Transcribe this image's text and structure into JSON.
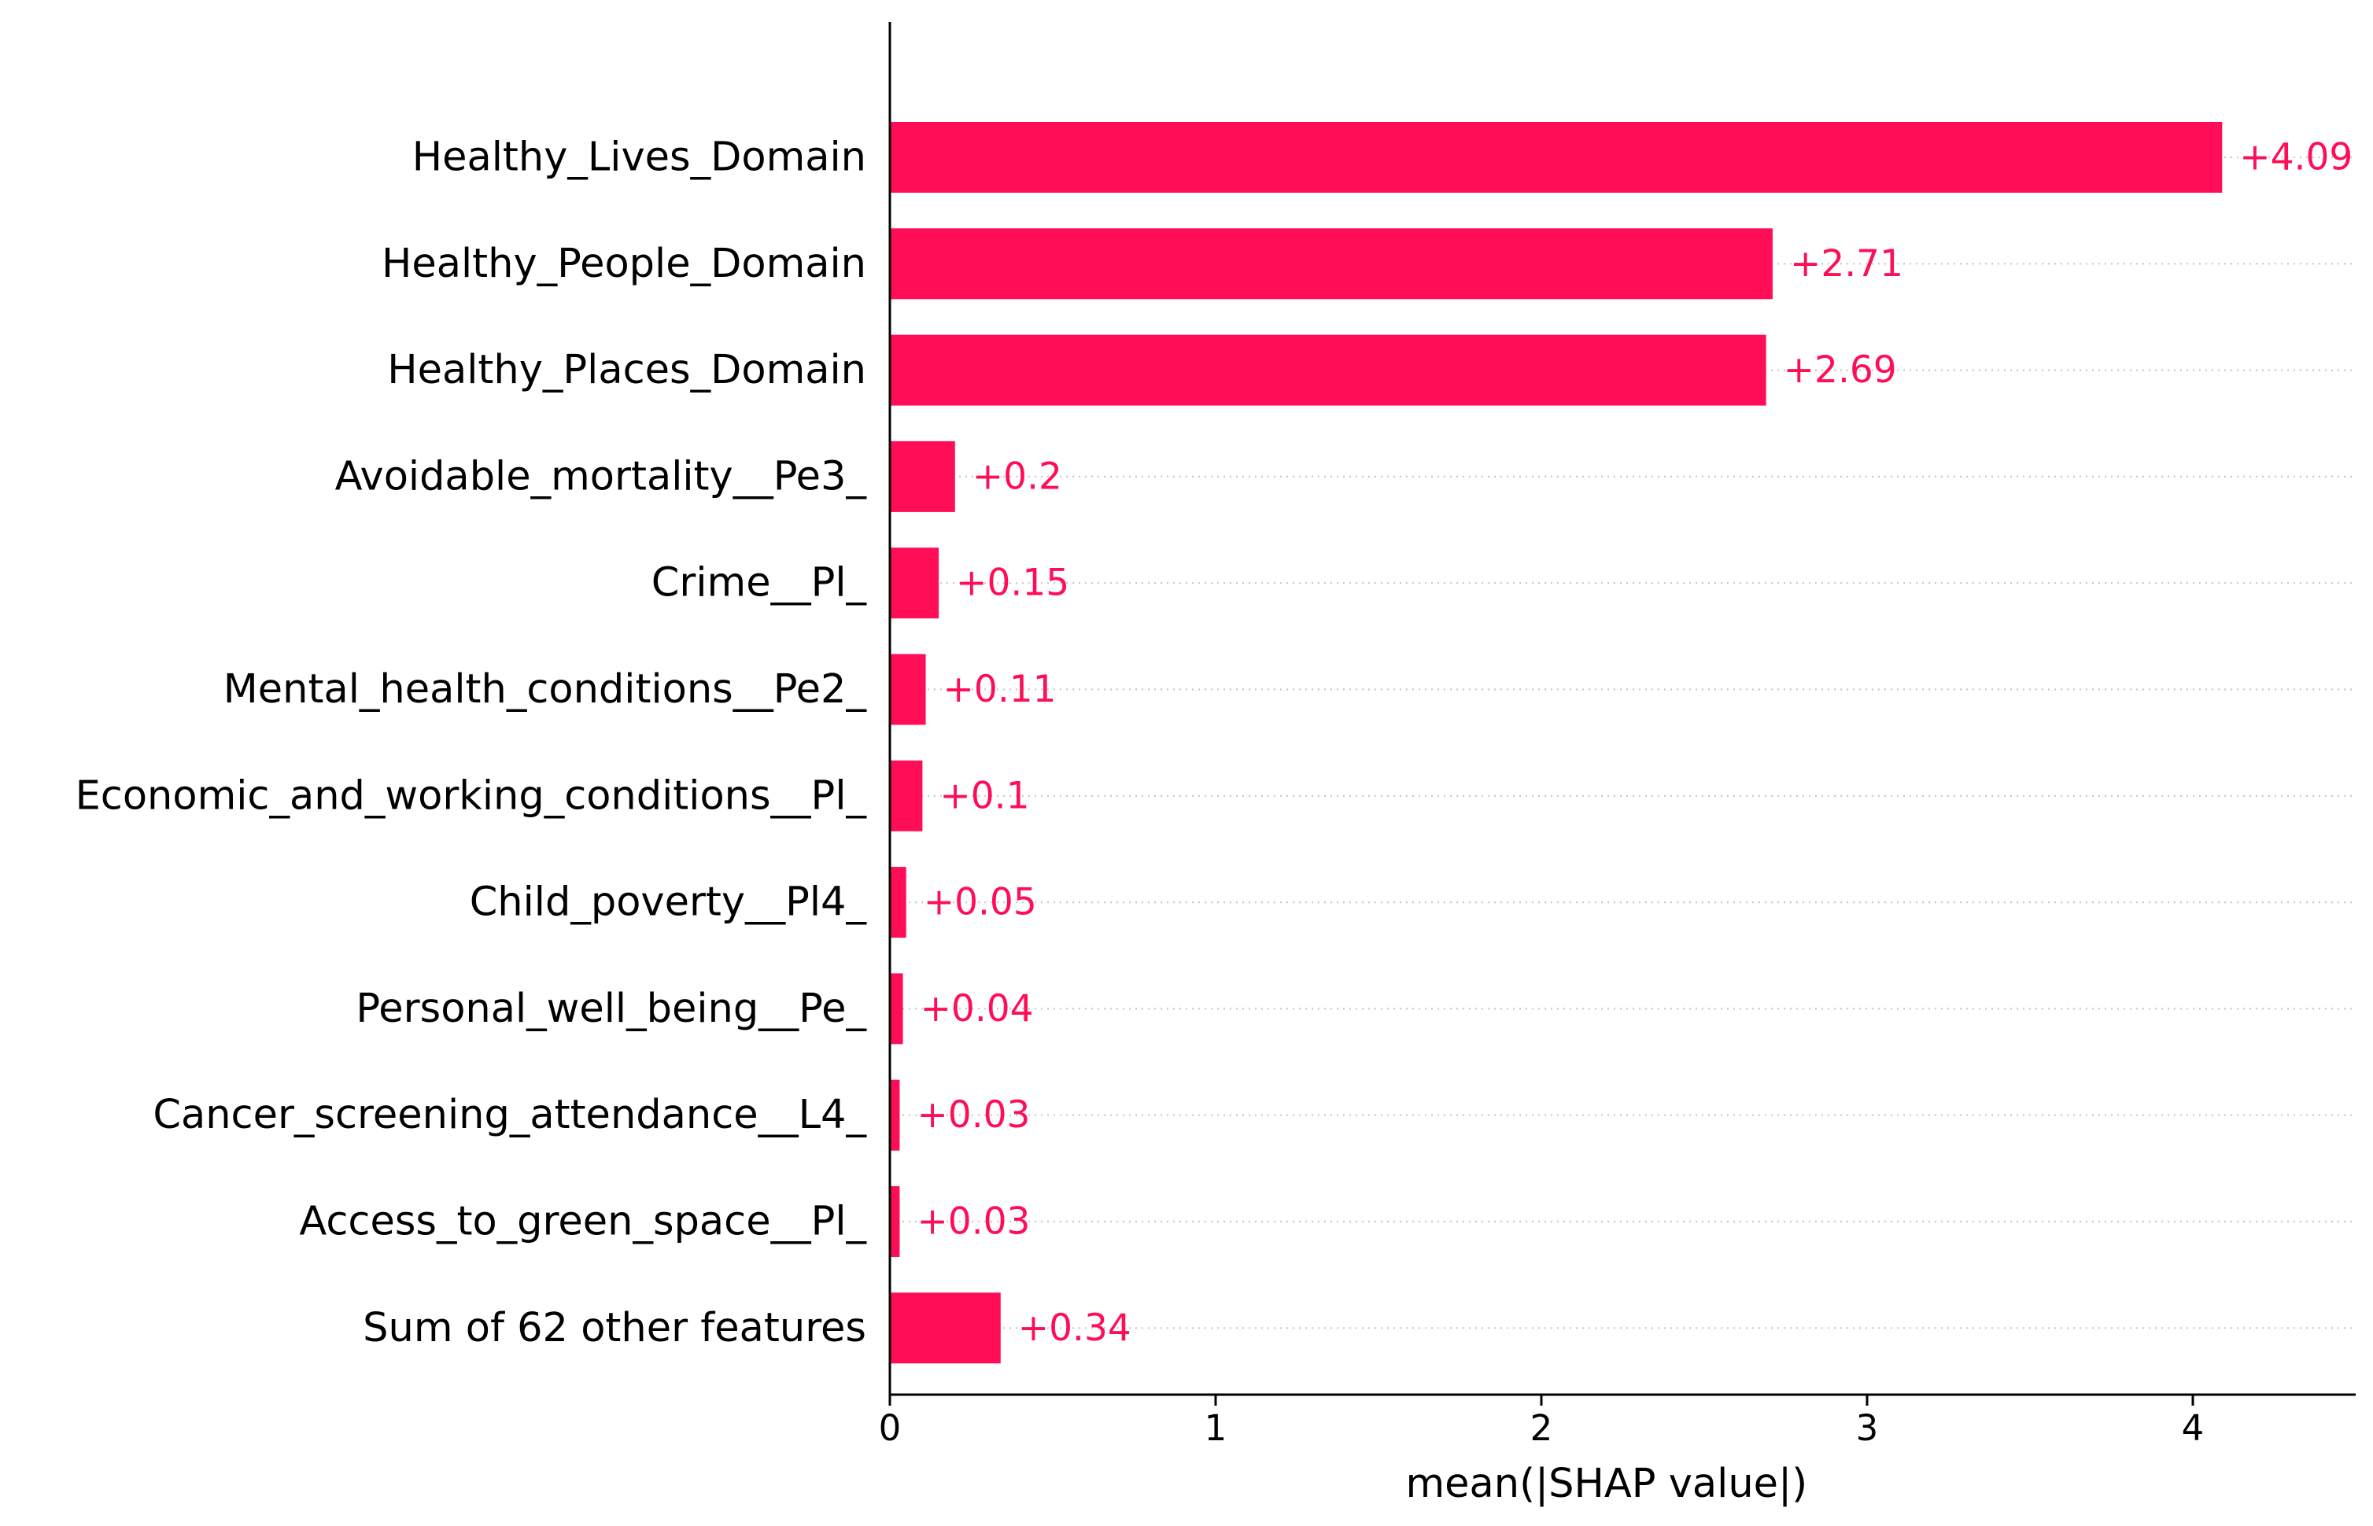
{
  "chart_data": {
    "type": "bar",
    "orientation": "horizontal",
    "categories": [
      "Healthy_Lives_Domain",
      "Healthy_People_Domain",
      "Healthy_Places_Domain",
      "Avoidable_mortality__Pe3_",
      "Crime__Pl_",
      "Mental_health_conditions__Pe2_",
      "Economic_and_working_conditions__Pl_",
      "Child_poverty__Pl4_",
      "Personal_well_being__Pe_",
      "Cancer_screening_attendance__L4_",
      "Access_to_green_space__Pl_",
      "Sum of 62 other features"
    ],
    "values": [
      4.09,
      2.71,
      2.69,
      0.2,
      0.15,
      0.11,
      0.1,
      0.05,
      0.04,
      0.03,
      0.03,
      0.34
    ],
    "value_labels": [
      "+4.09",
      "+2.71",
      "+2.69",
      "+0.2",
      "+0.15",
      "+0.11",
      "+0.1",
      "+0.05",
      "+0.04",
      "+0.03",
      "+0.03",
      "+0.34"
    ],
    "xlabel": "mean(|SHAP value|)",
    "ylabel": "",
    "title": "",
    "xlim": [
      0,
      4.5
    ],
    "xticks": [
      0,
      1,
      2,
      3,
      4
    ],
    "xtick_labels": [
      "0",
      "1",
      "2",
      "3",
      "4"
    ],
    "grid": "dotted guide line per row",
    "legend": "none",
    "colors": {
      "bar": "#ff0d57",
      "value_label": "#ff0d57",
      "axis": "#000000",
      "text": "#000000",
      "guide": "#c8c8c8"
    }
  }
}
